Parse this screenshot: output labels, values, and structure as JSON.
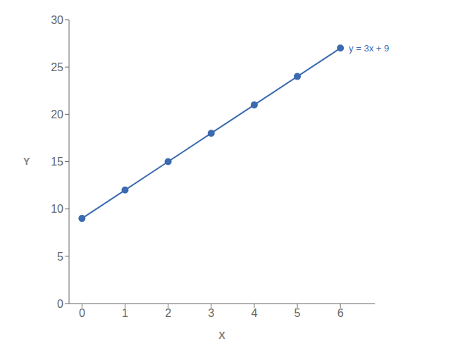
{
  "chart_data": {
    "type": "line",
    "x": [
      0,
      1,
      2,
      3,
      4,
      5,
      6
    ],
    "values": [
      9,
      12,
      15,
      18,
      21,
      24,
      27
    ],
    "color": "#3B6AB0",
    "marker": "circle",
    "line_style": "solid",
    "xlabel": "X",
    "ylabel": "Y",
    "xlim": [
      -0.3,
      6.8
    ],
    "ylim": [
      0,
      30
    ],
    "xticks": [
      0,
      1,
      2,
      3,
      4,
      5,
      6
    ],
    "yticks": [
      0,
      5,
      10,
      15,
      20,
      25,
      30
    ],
    "annotation": "y = 3x + 9",
    "grid": false
  }
}
